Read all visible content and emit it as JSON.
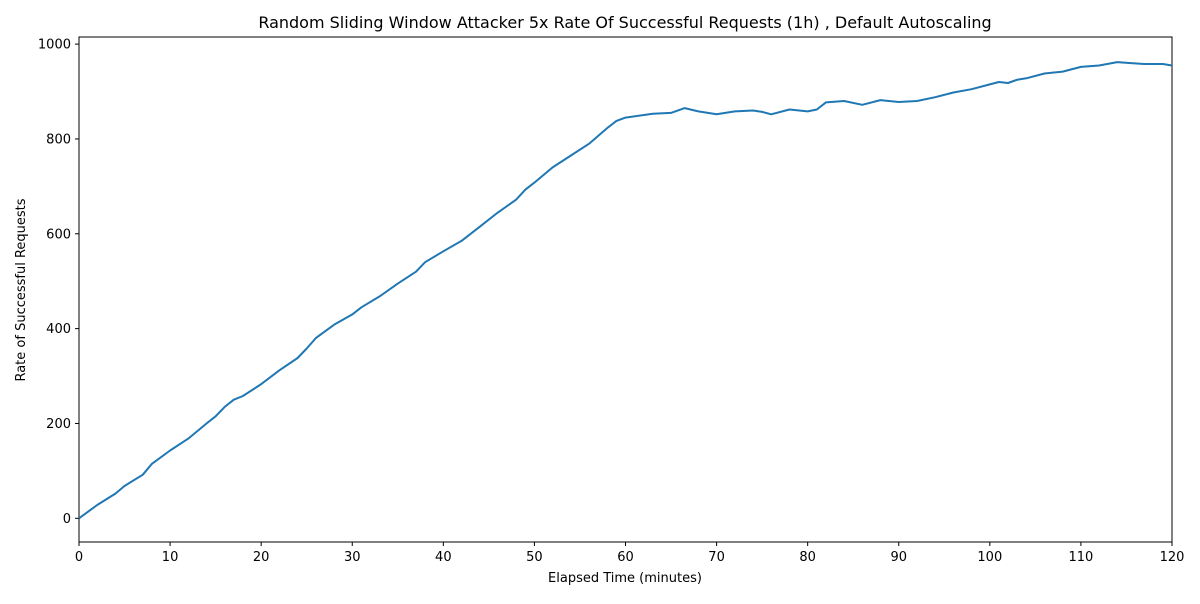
{
  "chart_data": {
    "type": "line",
    "title": "Random Sliding Window Attacker 5x Rate Of Successful Requests (1h) , Default Autoscaling",
    "xlabel": "Elapsed Time (minutes)",
    "ylabel": "Rate of Successful Requests",
    "xlim": [
      0,
      120
    ],
    "ylim": [
      -50,
      1015
    ],
    "xticks": [
      0,
      10,
      20,
      30,
      40,
      50,
      60,
      70,
      80,
      90,
      100,
      110,
      120
    ],
    "yticks": [
      0,
      200,
      400,
      600,
      800,
      1000
    ],
    "grid": false,
    "line_color": "#1f77b4",
    "series": [
      {
        "x": [
          0,
          2,
          4,
          5,
          7,
          8,
          10,
          12,
          14,
          15,
          16,
          17,
          18,
          20,
          22,
          24,
          25,
          26,
          28,
          30,
          31,
          33,
          35,
          37,
          38,
          40,
          42,
          44,
          46,
          48,
          49,
          50,
          52,
          54,
          56,
          58,
          59,
          60,
          63,
          65,
          66.5,
          68,
          70,
          72,
          74,
          75,
          76,
          78,
          80,
          81,
          82,
          84,
          86,
          88,
          90,
          92,
          94,
          96,
          98,
          100,
          101,
          102,
          103,
          104,
          106,
          108,
          110,
          112,
          114,
          115.5,
          117,
          119,
          120
        ],
        "y": [
          0,
          28,
          52,
          68,
          92,
          115,
          143,
          168,
          200,
          215,
          235,
          250,
          258,
          283,
          312,
          338,
          358,
          380,
          408,
          430,
          445,
          468,
          495,
          520,
          540,
          563,
          585,
          615,
          645,
          672,
          693,
          708,
          740,
          765,
          790,
          823,
          838,
          845,
          853,
          855,
          865,
          858,
          852,
          858,
          860,
          857,
          852,
          862,
          858,
          862,
          877,
          880,
          872,
          882,
          878,
          880,
          888,
          898,
          905,
          915,
          920,
          918,
          925,
          928,
          938,
          942,
          952,
          955,
          962,
          960,
          958,
          958,
          955
        ]
      }
    ]
  }
}
